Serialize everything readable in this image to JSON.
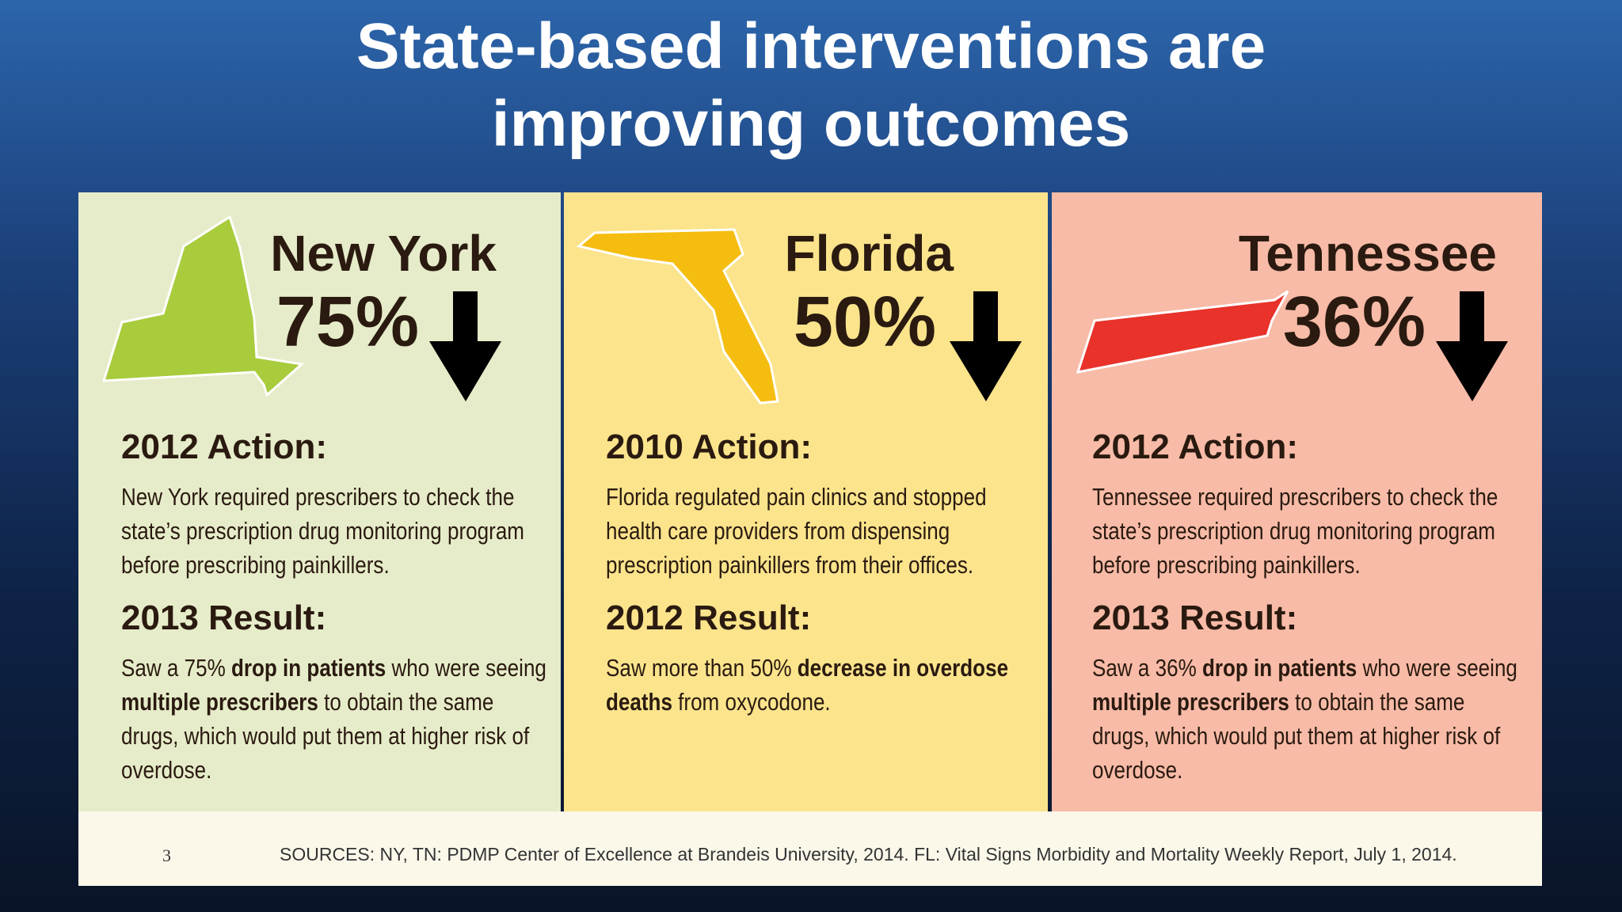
{
  "title": "State-based interventions are improving outcomes",
  "panels": [
    {
      "state": "New York",
      "percent": "75%",
      "action_heading": "2012 Action:",
      "action_text": "New York required prescribers to check the state’s prescription drug monitoring program before prescribing painkillers.",
      "result_heading": "2013 Result:",
      "result_text": [
        {
          "text": "Saw a 75% ",
          "bold": false
        },
        {
          "text": "drop in patients",
          "bold": true
        },
        {
          "text": " who were seeing ",
          "bold": false
        },
        {
          "text": "multiple prescribers",
          "bold": true
        },
        {
          "text": " to obtain the same drugs, which would put them at higher risk of overdose.",
          "bold": false
        }
      ]
    },
    {
      "state": "Florida",
      "percent": "50%",
      "action_heading": "2010 Action:",
      "action_text": "Florida regulated pain clinics and stopped health care providers from dispensing prescription painkillers from their offices.",
      "result_heading": "2012 Result:",
      "result_text": [
        {
          "text": "Saw more than 50% ",
          "bold": false
        },
        {
          "text": "decrease in overdose deaths",
          "bold": true
        },
        {
          "text": " from oxycodone.",
          "bold": false
        }
      ]
    },
    {
      "state": "Tennessee",
      "percent": "36%",
      "action_heading": "2012 Action:",
      "action_text": "Tennessee required prescribers to check the state’s prescription drug monitoring program before prescribing painkillers.",
      "result_heading": "2013 Result:",
      "result_text": [
        {
          "text": "Saw a 36% ",
          "bold": false
        },
        {
          "text": "drop in patients",
          "bold": true
        },
        {
          "text": " who were seeing ",
          "bold": false
        },
        {
          "text": "multiple prescribers",
          "bold": true
        },
        {
          "text": " to obtain the same drugs, which would put them at higher risk of overdose.",
          "bold": false
        }
      ]
    }
  ],
  "footer": {
    "page_number": "3",
    "sources": "SOURCES: NY, TN: PDMP Center of Excellence at Brandeis University, 2014. FL: Vital Signs Morbidity and Mortality Weekly Report, July 1, 2014."
  }
}
